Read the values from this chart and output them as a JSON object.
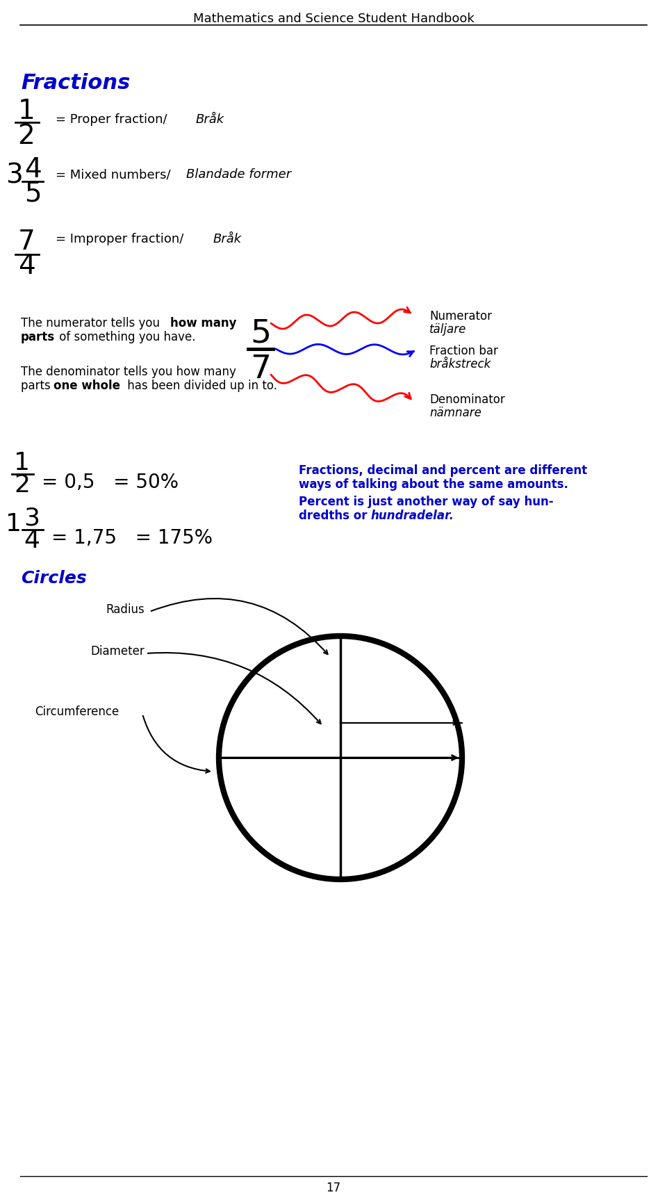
{
  "page_title": "Mathematics and Science Student Handbook",
  "page_number": "17",
  "section_fractions": "Fractions",
  "section_circles": "Circles",
  "bg_color": "#ffffff",
  "title_color": "#000000",
  "blue_color": "#0000cc",
  "red_color": "#cc0000",
  "black_color": "#000000"
}
